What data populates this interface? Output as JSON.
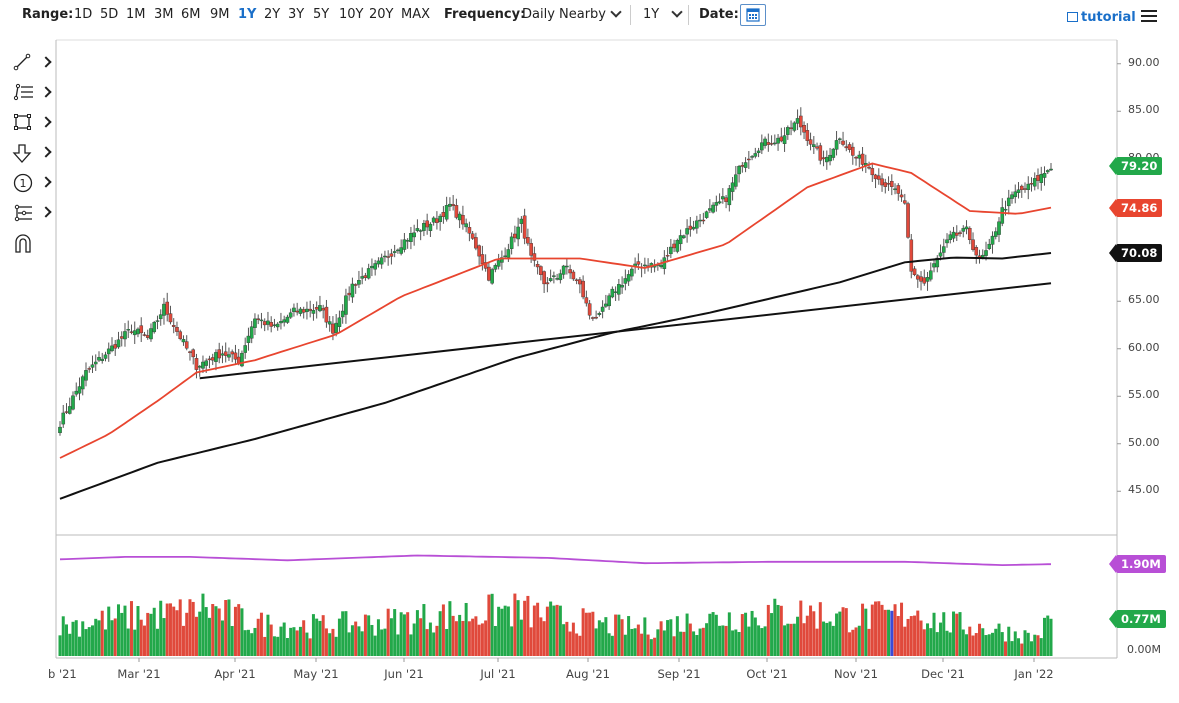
{
  "toolbar": {
    "range_label": "Range:",
    "ranges": [
      "1D",
      "5D",
      "1M",
      "3M",
      "6M",
      "9M",
      "1Y",
      "2Y",
      "3Y",
      "5Y",
      "10Y",
      "20Y",
      "MAX"
    ],
    "active_range": "1Y",
    "frequency_label": "Frequency:",
    "frequency_value": "Daily Nearby",
    "period_value": "1Y",
    "date_label": "Date:",
    "tutorial_label": "tutorial"
  },
  "sidebar_tools": [
    "line-tool-icon",
    "fib-tool-icon",
    "rectangle-tool-icon",
    "arrow-tool-icon",
    "annotation-tool-icon",
    "pattern-tool-icon",
    "magnet-tool-icon"
  ],
  "colors": {
    "up": "#22a84a",
    "down": "#e0493b",
    "ma_fast": "#e8452f",
    "ma_slow": "#111111",
    "volume_avg": "#b84fd6",
    "accent": "#1a6fc9"
  },
  "chart_data": {
    "type": "candlestick",
    "x_labels": [
      "Feb '21",
      "Mar '21",
      "Apr '21",
      "May '21",
      "Jun '21",
      "Jul '21",
      "Aug '21",
      "Sep '21",
      "Oct '21",
      "Nov '21",
      "Dec '21",
      "Jan '22"
    ],
    "x_label_first_visible": "b '21",
    "y_ticks": [
      "90.00",
      "85.00",
      "80.00",
      "75.00",
      "70.00",
      "65.00",
      "60.00",
      "55.00",
      "50.00",
      "45.00"
    ],
    "ylim": [
      40.5,
      92.5
    ],
    "price_badges": [
      {
        "label": "79.20",
        "value": 79.2,
        "color": "#22a84a"
      },
      {
        "label": "74.86",
        "value": 74.86,
        "color": "#e8452f"
      },
      {
        "label": "70.08",
        "value": 70.08,
        "color": "#111111"
      }
    ],
    "volume_ticks": [
      "0.00M"
    ],
    "volume_badges": [
      {
        "label": "1.90M",
        "value": 1.9,
        "color": "#b84fd6"
      },
      {
        "label": "0.77M",
        "value": 0.77,
        "color": "#22a84a"
      }
    ],
    "volume_ylim": [
      0,
      2.4
    ],
    "close_waypoints": [
      [
        0,
        52.2
      ],
      [
        8,
        57.5
      ],
      [
        15,
        59.8
      ],
      [
        22,
        62.1
      ],
      [
        27,
        61.1
      ],
      [
        32,
        64.4
      ],
      [
        38,
        60.6
      ],
      [
        42,
        58.2
      ],
      [
        50,
        59.6
      ],
      [
        55,
        58.7
      ],
      [
        60,
        63.3
      ],
      [
        66,
        62.2
      ],
      [
        72,
        63.9
      ],
      [
        80,
        64.3
      ],
      [
        84,
        62.0
      ],
      [
        90,
        66.7
      ],
      [
        98,
        68.9
      ],
      [
        105,
        71.1
      ],
      [
        110,
        72.5
      ],
      [
        116,
        73.6
      ],
      [
        120,
        75.1
      ],
      [
        124,
        73.4
      ],
      [
        128,
        70.8
      ],
      [
        132,
        67.6
      ],
      [
        136,
        69.6
      ],
      [
        140,
        72.0
      ],
      [
        142,
        73.3
      ],
      [
        145,
        69.5
      ],
      [
        149,
        66.9
      ],
      [
        153,
        67.5
      ],
      [
        155,
        68.8
      ],
      [
        160,
        66.6
      ],
      [
        163,
        63.6
      ],
      [
        166,
        63.3
      ],
      [
        170,
        65.9
      ],
      [
        178,
        68.9
      ],
      [
        185,
        68.8
      ],
      [
        190,
        71.6
      ],
      [
        198,
        73.9
      ],
      [
        205,
        75.9
      ],
      [
        210,
        79.6
      ],
      [
        216,
        81.6
      ],
      [
        222,
        82.1
      ],
      [
        227,
        84.0
      ],
      [
        230,
        82.3
      ],
      [
        235,
        79.6
      ],
      [
        240,
        82.4
      ],
      [
        244,
        80.3
      ],
      [
        248,
        79.6
      ],
      [
        252,
        77.9
      ],
      [
        255,
        77.0
      ],
      [
        258,
        76.4
      ],
      [
        260,
        74.9
      ],
      [
        262,
        68.0
      ],
      [
        266,
        66.9
      ],
      [
        270,
        69.4
      ],
      [
        274,
        71.7
      ],
      [
        279,
        72.4
      ],
      [
        283,
        69.2
      ],
      [
        286,
        70.6
      ],
      [
        290,
        74.6
      ],
      [
        294,
        76.4
      ],
      [
        298,
        77.0
      ],
      [
        302,
        78.2
      ],
      [
        305,
        79.2
      ]
    ],
    "volume_waypoints": [
      [
        0,
        0.65
      ],
      [
        20,
        0.85
      ],
      [
        40,
        0.95
      ],
      [
        43,
        1.1
      ],
      [
        60,
        0.7
      ],
      [
        80,
        0.65
      ],
      [
        100,
        0.75
      ],
      [
        120,
        0.9
      ],
      [
        140,
        1.0
      ],
      [
        160,
        0.75
      ],
      [
        170,
        0.65
      ],
      [
        180,
        0.6
      ],
      [
        200,
        0.8
      ],
      [
        215,
        0.9
      ],
      [
        230,
        0.95
      ],
      [
        240,
        0.85
      ],
      [
        250,
        0.85
      ],
      [
        260,
        0.9
      ],
      [
        262,
        1.05
      ],
      [
        270,
        0.75
      ],
      [
        280,
        0.65
      ],
      [
        290,
        0.55
      ],
      [
        300,
        0.4
      ],
      [
        305,
        0.77
      ]
    ],
    "volume_avg_waypoints": [
      [
        0,
        2.0
      ],
      [
        20,
        2.05
      ],
      [
        40,
        2.05
      ],
      [
        70,
        1.98
      ],
      [
        110,
        2.08
      ],
      [
        150,
        2.03
      ],
      [
        180,
        1.92
      ],
      [
        220,
        1.95
      ],
      [
        260,
        1.95
      ],
      [
        290,
        1.88
      ],
      [
        305,
        1.9
      ]
    ],
    "ma50_waypoints": [
      [
        0,
        48.5
      ],
      [
        15,
        51.0
      ],
      [
        30,
        54.5
      ],
      [
        42,
        57.5
      ],
      [
        60,
        58.8
      ],
      [
        85,
        61.5
      ],
      [
        105,
        65.5
      ],
      [
        135,
        69.5
      ],
      [
        160,
        69.5
      ],
      [
        180,
        68.5
      ],
      [
        205,
        71.0
      ],
      [
        230,
        77.0
      ],
      [
        250,
        79.5
      ],
      [
        262,
        78.5
      ],
      [
        280,
        74.5
      ],
      [
        295,
        74.2
      ],
      [
        305,
        74.86
      ]
    ],
    "ma200_waypoints": [
      [
        0,
        44.2
      ],
      [
        30,
        48.0
      ],
      [
        60,
        50.5
      ],
      [
        100,
        54.3
      ],
      [
        140,
        59.0
      ],
      [
        170,
        61.7
      ],
      [
        200,
        63.8
      ],
      [
        240,
        67.0
      ],
      [
        260,
        69.1
      ],
      [
        275,
        69.6
      ],
      [
        290,
        69.5
      ],
      [
        305,
        70.08
      ]
    ],
    "trendlines": [
      {
        "from": [
          43,
          56.9
        ],
        "to": [
          305,
          66.9
        ]
      }
    ]
  }
}
